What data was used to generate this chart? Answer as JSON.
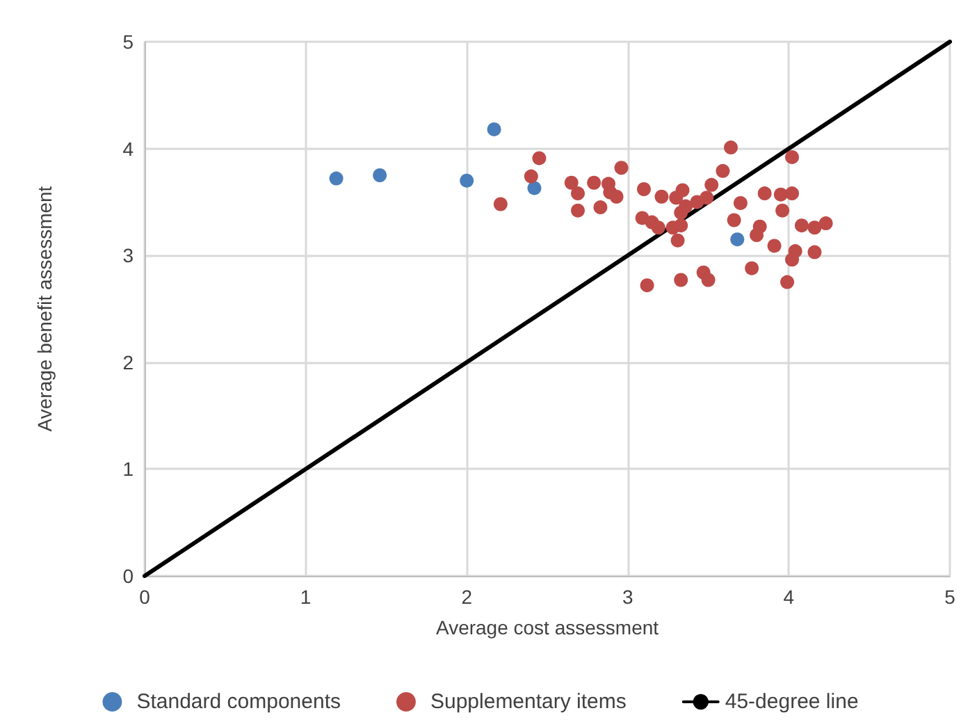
{
  "chart_data": {
    "type": "scatter",
    "xlabel": "Average cost assessment",
    "ylabel": "Average benefit assessment",
    "xlim": [
      0,
      5
    ],
    "ylim": [
      0,
      5
    ],
    "xticks": [
      0,
      1,
      2,
      3,
      4,
      5
    ],
    "yticks": [
      0,
      1,
      2,
      3,
      4,
      5
    ],
    "grid": true,
    "legend": "bottom",
    "marker": "circle",
    "series": [
      {
        "name": "Standard components",
        "color": "#4a7ebb",
        "x": [
          1.19,
          1.46,
          2.0,
          2.17,
          2.42,
          3.68
        ],
        "values": [
          3.72,
          3.75,
          3.7,
          4.18,
          3.63,
          3.15
        ]
      },
      {
        "name": "Supplementary items",
        "color": "#be4b48",
        "x": [
          2.4,
          2.45,
          2.21,
          2.65,
          2.69,
          2.69,
          2.79,
          2.83,
          2.88,
          2.89,
          2.93,
          2.96,
          3.1,
          3.09,
          3.15,
          3.12,
          3.19,
          3.21,
          3.28,
          3.3,
          3.34,
          3.31,
          3.33,
          3.33,
          3.33,
          3.36,
          3.43,
          3.49,
          3.52,
          3.47,
          3.5,
          3.59,
          3.64,
          3.66,
          3.7,
          3.77,
          3.82,
          3.8,
          3.85,
          3.91,
          3.95,
          3.96,
          3.99,
          4.02,
          4.02,
          4.02,
          4.04,
          4.08,
          4.16,
          4.16,
          4.23
        ],
        "values": [
          3.74,
          3.91,
          3.48,
          3.68,
          3.58,
          3.42,
          3.68,
          3.45,
          3.67,
          3.59,
          3.55,
          3.82,
          3.62,
          3.35,
          3.31,
          2.72,
          3.26,
          3.55,
          3.26,
          3.54,
          3.61,
          3.14,
          3.4,
          3.28,
          2.77,
          3.46,
          3.5,
          3.54,
          3.66,
          2.84,
          2.77,
          3.79,
          4.01,
          3.33,
          3.49,
          2.88,
          3.27,
          3.19,
          3.58,
          3.09,
          3.57,
          3.42,
          2.75,
          3.92,
          3.58,
          2.96,
          3.04,
          3.28,
          3.26,
          3.03,
          3.3
        ]
      },
      {
        "name": "45-degree line",
        "type": "line",
        "color": "#000000",
        "line_style": "solid",
        "marker": "none",
        "x": [
          0,
          5
        ],
        "values": [
          0,
          5
        ]
      }
    ]
  }
}
